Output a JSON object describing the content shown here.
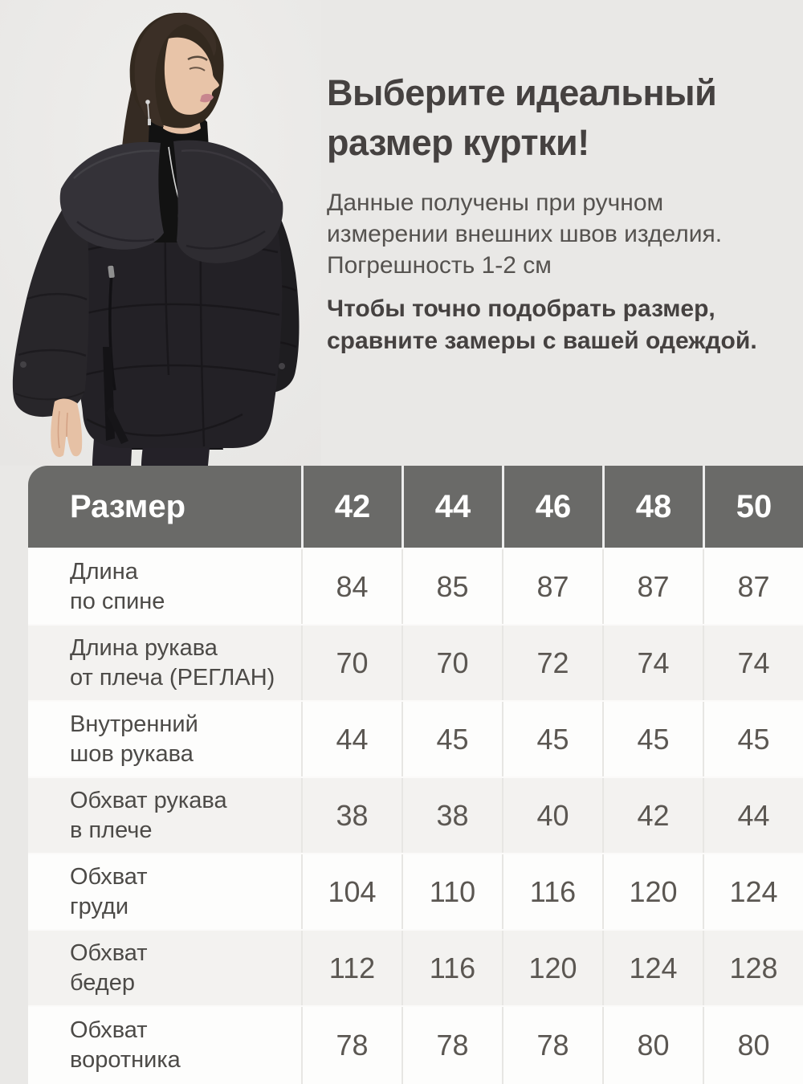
{
  "colors": {
    "page_bg": "#e9e8e6",
    "table_header_bg": "#6a6a68",
    "table_header_text": "#ffffff",
    "row_bg": "#fdfdfc",
    "row_alt_bg": "#f3f2f0",
    "heading_text": "#454140",
    "body_text": "#55524f",
    "table_text": "#4c4a47",
    "table_value_text": "#5b5752"
  },
  "intro": {
    "title_lines": [
      "Выберите идеальный",
      "размер куртки!"
    ],
    "body_lines": [
      "Данные получены при ручном",
      "измерении внешних швов изделия.",
      "Погрешность 1-2 см"
    ],
    "note_lines": [
      "Чтобы точно подобрать размер,",
      "сравните замеры с вашей одеждой."
    ]
  },
  "size_table": {
    "header_label": "Размер",
    "sizes": [
      "42",
      "44",
      "46",
      "48",
      "50"
    ],
    "rows": [
      {
        "label_lines": [
          "Длина",
          "по спине"
        ],
        "values": [
          "84",
          "85",
          "87",
          "87",
          "87"
        ]
      },
      {
        "label_lines": [
          "Длина рукава",
          "от плеча (РЕГЛАН)"
        ],
        "values": [
          "70",
          "70",
          "72",
          "74",
          "74"
        ]
      },
      {
        "label_lines": [
          "Внутренний",
          "шов рукава"
        ],
        "values": [
          "44",
          "45",
          "45",
          "45",
          "45"
        ]
      },
      {
        "label_lines": [
          "Обхват рукава",
          "в плече"
        ],
        "values": [
          "38",
          "38",
          "40",
          "42",
          "44"
        ]
      },
      {
        "label_lines": [
          "Обхват",
          "груди"
        ],
        "values": [
          "104",
          "110",
          "116",
          "120",
          "124"
        ]
      },
      {
        "label_lines": [
          "Обхват",
          "бедер"
        ],
        "values": [
          "112",
          "116",
          "120",
          "124",
          "128"
        ]
      },
      {
        "label_lines": [
          "Обхват",
          "воротника"
        ],
        "values": [
          "78",
          "78",
          "78",
          "80",
          "80"
        ]
      }
    ]
  }
}
